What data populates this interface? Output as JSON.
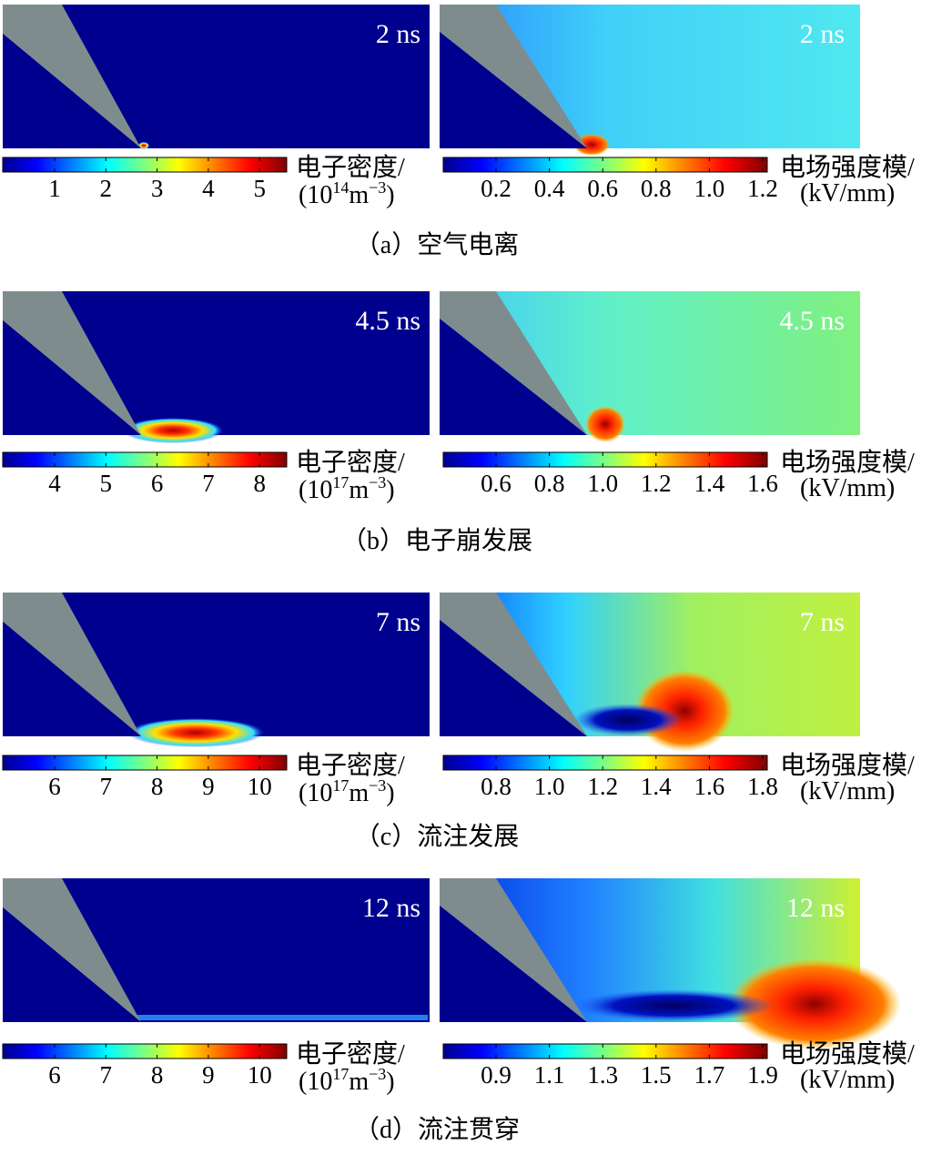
{
  "panels": [
    {
      "caption": "（a）空气电离",
      "left": {
        "time": "2 ns",
        "colorbar": {
          "ticks": [
            "1",
            "2",
            "3",
            "4",
            "5"
          ],
          "label": "电子密度/",
          "unit": {
            "open": "(10",
            "exp": "14",
            "base": "m",
            "base_exp": "−3",
            "close": ")"
          }
        }
      },
      "right": {
        "time": "2 ns",
        "colorbar": {
          "ticks": [
            "0.2",
            "0.4",
            "0.6",
            "0.8",
            "1.0",
            "1.2"
          ],
          "label": "电场强度模/",
          "unit": "(kV/mm)"
        }
      }
    },
    {
      "caption": "（b）电子崩发展",
      "left": {
        "time": "4.5 ns",
        "colorbar": {
          "ticks": [
            "4",
            "5",
            "6",
            "7",
            "8"
          ],
          "label": "电子密度/",
          "unit": {
            "open": "(10",
            "exp": "17",
            "base": "m",
            "base_exp": "−3",
            "close": ")"
          }
        }
      },
      "right": {
        "time": "4.5 ns",
        "colorbar": {
          "ticks": [
            "0.6",
            "0.8",
            "1.0",
            "1.2",
            "1.4",
            "1.6"
          ],
          "label": "电场强度模/",
          "unit": "(kV/mm)"
        }
      }
    },
    {
      "caption": "（c）流注发展",
      "left": {
        "time": "7 ns",
        "colorbar": {
          "ticks": [
            "6",
            "7",
            "8",
            "9",
            "10"
          ],
          "label": "电子密度/",
          "unit": {
            "open": "(10",
            "exp": "17",
            "base": "m",
            "base_exp": "−3",
            "close": ")"
          }
        }
      },
      "right": {
        "time": "7 ns",
        "colorbar": {
          "ticks": [
            "0.8",
            "1.0",
            "1.2",
            "1.4",
            "1.6",
            "1.8"
          ],
          "label": "电场强度模/",
          "unit": "(kV/mm)"
        }
      }
    },
    {
      "caption": "（d）流注贯穿",
      "left": {
        "time": "12 ns",
        "colorbar": {
          "ticks": [
            "6",
            "7",
            "8",
            "9",
            "10"
          ],
          "label": "电子密度/",
          "unit": {
            "open": "(10",
            "exp": "17",
            "base": "m",
            "base_exp": "−3",
            "close": ")"
          }
        }
      },
      "right": {
        "time": "12 ns",
        "colorbar": {
          "ticks": [
            "0.9",
            "1.1",
            "1.3",
            "1.5",
            "1.7",
            "1.9"
          ],
          "label": "电场强度模/",
          "unit": "(kV/mm)"
        }
      }
    }
  ]
}
